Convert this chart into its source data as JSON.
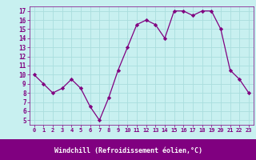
{
  "x": [
    0,
    1,
    2,
    3,
    4,
    5,
    6,
    7,
    8,
    9,
    10,
    11,
    12,
    13,
    14,
    15,
    16,
    17,
    18,
    19,
    20,
    21,
    22,
    23
  ],
  "y": [
    10,
    9,
    8,
    8.5,
    9.5,
    8.5,
    6.5,
    5,
    7.5,
    10.5,
    13,
    15.5,
    16,
    15.5,
    14,
    17,
    17,
    16.5,
    17,
    17,
    15,
    10.5,
    9.5,
    8
  ],
  "line_color": "#800080",
  "marker": "D",
  "marker_size": 2.2,
  "bg_color": "#c8f0f0",
  "grid_color": "#aadddd",
  "xlabel": "Windchill (Refroidissement éolien,°C)",
  "ylabel": "",
  "title": "",
  "xlim": [
    -0.5,
    23.5
  ],
  "ylim": [
    4.5,
    17.5
  ],
  "yticks": [
    5,
    6,
    7,
    8,
    9,
    10,
    11,
    12,
    13,
    14,
    15,
    16,
    17
  ],
  "xticks": [
    0,
    1,
    2,
    3,
    4,
    5,
    6,
    7,
    8,
    9,
    10,
    11,
    12,
    13,
    14,
    15,
    16,
    17,
    18,
    19,
    20,
    21,
    22,
    23
  ],
  "xlabel_color": "#800080",
  "tick_color": "#800080",
  "spine_color": "#800080",
  "bottom_bar_color": "#800080",
  "bottom_bar_height": 0.13
}
